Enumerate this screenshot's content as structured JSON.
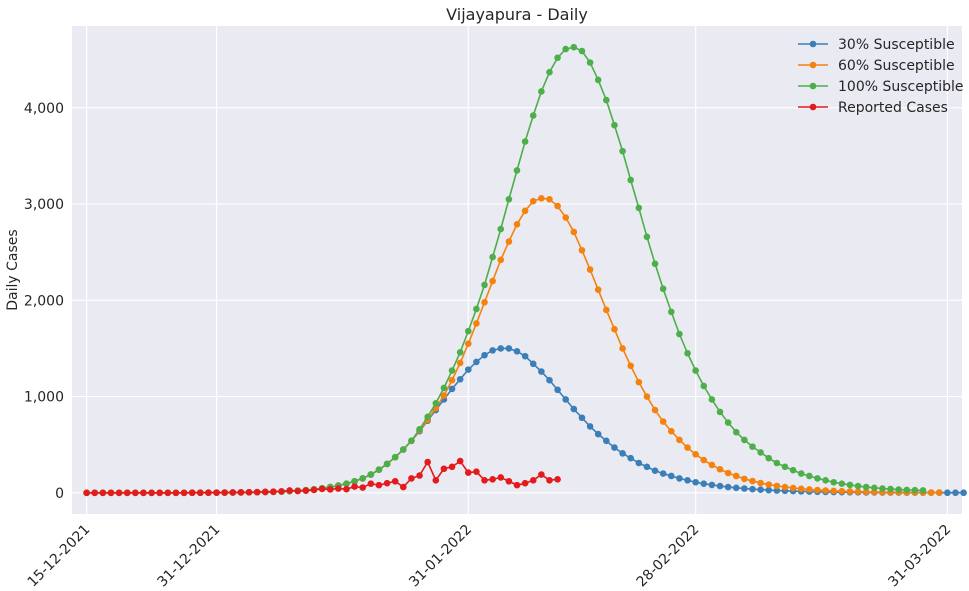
{
  "chart_data": {
    "type": "line",
    "title": "Vijayapura - Daily",
    "xlabel": "",
    "ylabel": "Daily Cases",
    "x_start": "15-12-2021",
    "x_end": "31-03-2022",
    "x_tick_labels": [
      "15-12-2021",
      "31-12-2021",
      "31-01-2022",
      "28-02-2022",
      "31-03-2022"
    ],
    "y_ticks": [
      0,
      1000,
      2000,
      3000,
      4000
    ],
    "y_tick_labels": [
      "0",
      "1,000",
      "2,000",
      "3,000",
      "4,000"
    ],
    "ylim": [
      -220,
      4850
    ],
    "grid": true,
    "legend_position": "top-right",
    "series": [
      {
        "name": "30% Susceptible",
        "color": "#3a7fb8",
        "start": "15-12-2021",
        "values": [
          0,
          0,
          0,
          0,
          0,
          0,
          0,
          0,
          0,
          0,
          0,
          0,
          0,
          1,
          1,
          1,
          2,
          2,
          3,
          4,
          5,
          6,
          8,
          10,
          13,
          17,
          22,
          28,
          36,
          47,
          60,
          75,
          95,
          120,
          150,
          190,
          240,
          300,
          370,
          450,
          540,
          640,
          750,
          860,
          970,
          1080,
          1180,
          1280,
          1360,
          1430,
          1480,
          1500,
          1500,
          1470,
          1420,
          1340,
          1260,
          1170,
          1070,
          970,
          870,
          780,
          690,
          610,
          540,
          470,
          410,
          360,
          310,
          270,
          230,
          200,
          175,
          150,
          130,
          110,
          95,
          82,
          70,
          60,
          52,
          45,
          38,
          33,
          28,
          24,
          21,
          18,
          15,
          13,
          11,
          9,
          8,
          7,
          6,
          5,
          4,
          4,
          3,
          3,
          3,
          2,
          2,
          2,
          2,
          2,
          1,
          1,
          1
        ]
      },
      {
        "name": "60% Susceptible",
        "color": "#f5820e",
        "start": "15-12-2021",
        "values": [
          0,
          0,
          0,
          0,
          0,
          0,
          0,
          0,
          0,
          0,
          0,
          0,
          0,
          1,
          1,
          1,
          2,
          2,
          3,
          4,
          5,
          6,
          8,
          10,
          13,
          17,
          22,
          28,
          36,
          47,
          60,
          75,
          95,
          120,
          150,
          190,
          240,
          300,
          370,
          450,
          540,
          650,
          760,
          880,
          1010,
          1170,
          1350,
          1550,
          1760,
          1980,
          2200,
          2420,
          2610,
          2790,
          2930,
          3030,
          3060,
          3050,
          2980,
          2860,
          2710,
          2520,
          2320,
          2110,
          1900,
          1700,
          1500,
          1320,
          1150,
          1000,
          860,
          740,
          640,
          550,
          470,
          400,
          340,
          290,
          245,
          205,
          175,
          145,
          122,
          102,
          86,
          72,
          60,
          50,
          42,
          35,
          29,
          24,
          20,
          17,
          14,
          12,
          10,
          8,
          7,
          6,
          5,
          4,
          4,
          3,
          3,
          3
        ]
      },
      {
        "name": "100% Susceptible",
        "color": "#4daf4a",
        "start": "15-12-2021",
        "values": [
          0,
          0,
          0,
          0,
          0,
          0,
          0,
          0,
          0,
          0,
          0,
          0,
          0,
          1,
          1,
          1,
          2,
          2,
          3,
          4,
          5,
          6,
          8,
          10,
          13,
          17,
          22,
          28,
          36,
          47,
          60,
          75,
          95,
          120,
          150,
          190,
          240,
          300,
          370,
          450,
          540,
          660,
          790,
          930,
          1090,
          1270,
          1460,
          1680,
          1910,
          2160,
          2450,
          2740,
          3050,
          3350,
          3650,
          3920,
          4170,
          4370,
          4520,
          4610,
          4630,
          4590,
          4470,
          4290,
          4080,
          3820,
          3550,
          3250,
          2960,
          2660,
          2380,
          2120,
          1880,
          1650,
          1450,
          1270,
          1110,
          970,
          840,
          730,
          630,
          550,
          480,
          420,
          360,
          310,
          270,
          235,
          200,
          175,
          150,
          130,
          110,
          95,
          82,
          70,
          60,
          52,
          45,
          39,
          34,
          30,
          27,
          25
        ]
      },
      {
        "name": "Reported Cases",
        "color": "#e41a1c",
        "start": "15-12-2021",
        "values": [
          0,
          0,
          0,
          0,
          0,
          0,
          0,
          0,
          0,
          0,
          0,
          0,
          0,
          1,
          1,
          2,
          2,
          3,
          4,
          5,
          6,
          8,
          10,
          12,
          15,
          25,
          18,
          22,
          30,
          40,
          35,
          45,
          38,
          65,
          55,
          95,
          80,
          100,
          120,
          60,
          150,
          180,
          320,
          130,
          250,
          270,
          330,
          210,
          220,
          130,
          140,
          160,
          120,
          80,
          100,
          130,
          190,
          130,
          140
        ]
      }
    ]
  }
}
